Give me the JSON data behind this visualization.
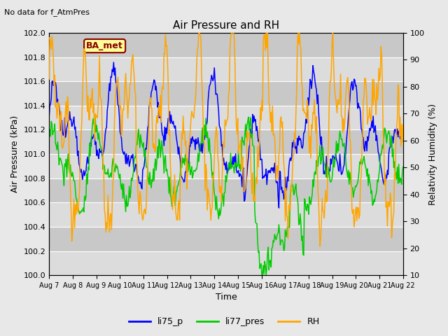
{
  "title": "Air Pressure and RH",
  "subtitle": "No data for f_AtmPres",
  "xlabel": "Time",
  "ylabel_left": "Air Pressure (kPa)",
  "ylabel_right": "Relativity Humidity (%)",
  "x_ticks": [
    "Aug 7",
    "Aug 8",
    "Aug 9",
    "Aug 10",
    "Aug 11",
    "Aug 12",
    "Aug 13",
    "Aug 14",
    "Aug 15",
    "Aug 16",
    "Aug 17",
    "Aug 18",
    "Aug 19",
    "Aug 20",
    "Aug 21",
    "Aug 22"
  ],
  "ylim_left": [
    100.0,
    102.0
  ],
  "ylim_right": [
    10,
    100
  ],
  "yticks_left": [
    100.0,
    100.2,
    100.4,
    100.6,
    100.8,
    101.0,
    101.2,
    101.4,
    101.6,
    101.8,
    102.0
  ],
  "yticks_right": [
    10,
    20,
    30,
    40,
    50,
    60,
    70,
    80,
    90,
    100
  ],
  "color_li75": "#0000FF",
  "color_li77": "#00CC00",
  "color_rh": "#FFA500",
  "legend_entries": [
    "li75_p",
    "li77_pres",
    "RH"
  ],
  "ba_met_label": "BA_met",
  "ba_met_color": "#8B0000",
  "ba_met_bg": "#FFFF99",
  "fig_bg": "#E8E8E8",
  "plot_bg": "#D8D8D8",
  "stripe_light": "#DCDCDC",
  "stripe_dark": "#C8C8C8",
  "grid_color": "#FFFFFF",
  "title_fontsize": 11,
  "axis_fontsize": 9,
  "tick_fontsize": 8,
  "n_points": 500
}
